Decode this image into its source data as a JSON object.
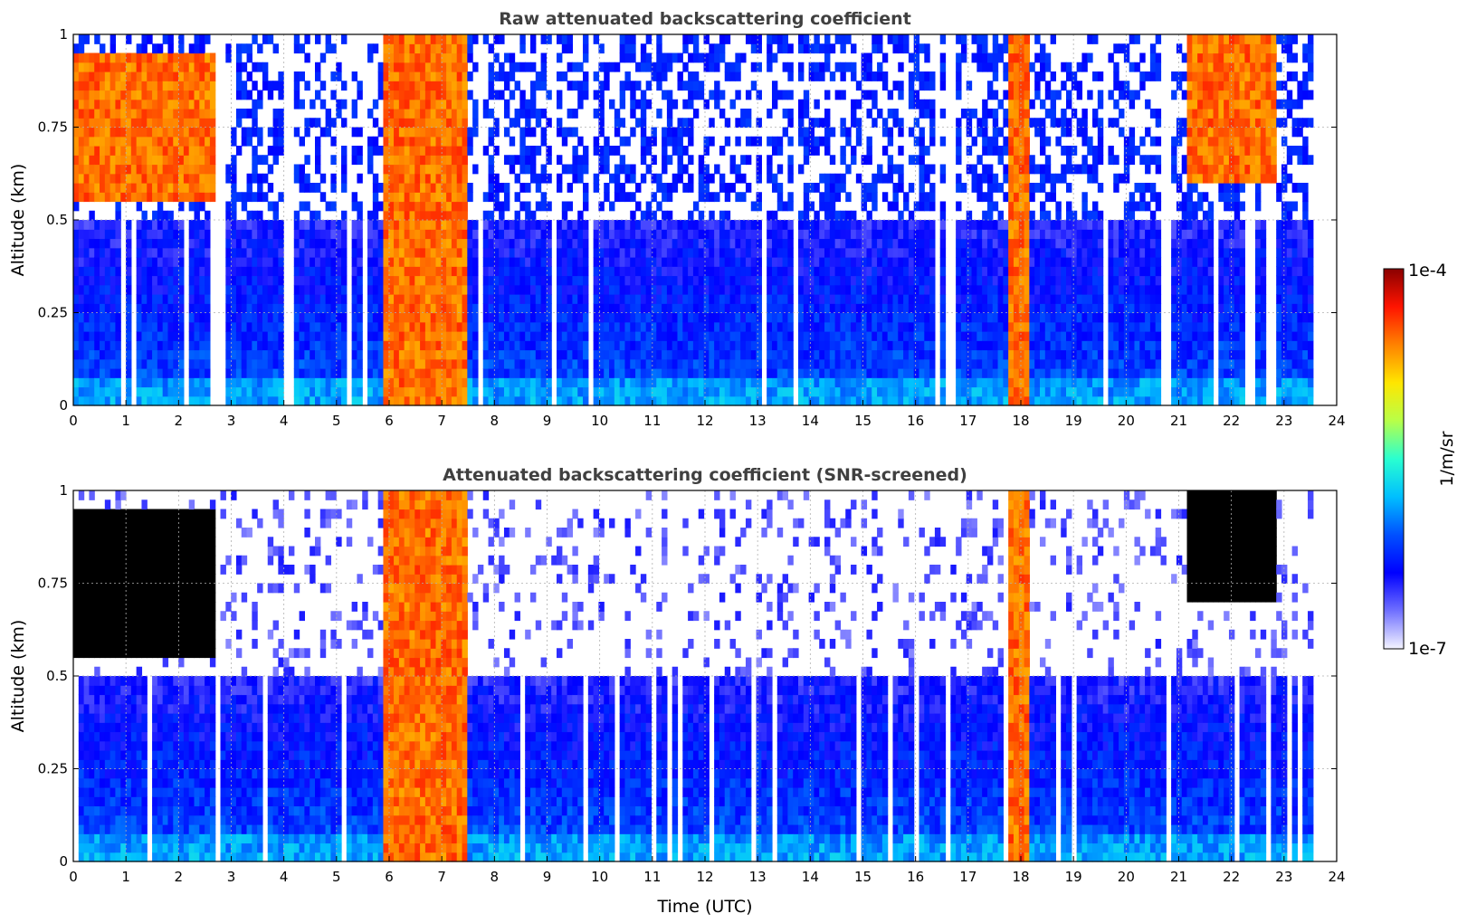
{
  "chart_data": [
    {
      "type": "heatmap",
      "title": "Raw attenuated backscattering coefficient",
      "xlabel": "",
      "ylabel": "Altitude (km)",
      "xlim": [
        0,
        24
      ],
      "ylim": [
        0,
        1
      ],
      "xticks": [
        "0",
        "1",
        "2",
        "3",
        "4",
        "5",
        "6",
        "7",
        "8",
        "9",
        "10",
        "11",
        "12",
        "13",
        "14",
        "15",
        "16",
        "17",
        "18",
        "19",
        "20",
        "21",
        "22",
        "23",
        "24"
      ],
      "yticks": [
        "0",
        "0.25",
        "0.5",
        "0.75",
        "1"
      ],
      "grid": true,
      "data_end_time": 23.55,
      "features": [
        {
          "time_start": 0.0,
          "time_end": 2.7,
          "alt_start": 0.55,
          "alt_end": 0.95,
          "level": "high"
        },
        {
          "time_start": 5.9,
          "time_end": 7.5,
          "alt_start": 0.0,
          "alt_end": 1.0,
          "level": "high"
        },
        {
          "time_start": 17.8,
          "time_end": 18.2,
          "alt_start": 0.0,
          "alt_end": 1.0,
          "level": "high"
        },
        {
          "time_start": 21.2,
          "time_end": 22.9,
          "alt_start": 0.6,
          "alt_end": 1.0,
          "level": "high"
        },
        {
          "time_start": 0.0,
          "time_end": 23.55,
          "alt_start": 0.0,
          "alt_end": 0.5,
          "level": "moderate"
        }
      ]
    },
    {
      "type": "heatmap",
      "title": "Attenuated backscattering coefficient (SNR-screened)",
      "xlabel": "Time (UTC)",
      "ylabel": "Altitude (km)",
      "xlim": [
        0,
        24
      ],
      "ylim": [
        0,
        1
      ],
      "xticks": [
        "0",
        "1",
        "2",
        "3",
        "4",
        "5",
        "6",
        "7",
        "8",
        "9",
        "10",
        "11",
        "12",
        "13",
        "14",
        "15",
        "16",
        "17",
        "18",
        "19",
        "20",
        "21",
        "22",
        "23",
        "24"
      ],
      "yticks": [
        "0",
        "0.25",
        "0.5",
        "0.75",
        "1"
      ],
      "grid": true,
      "data_end_time": 23.55,
      "features": [
        {
          "time_start": 0.0,
          "time_end": 2.7,
          "alt_start": 0.55,
          "alt_end": 0.95,
          "level": "saturated"
        },
        {
          "time_start": 5.9,
          "time_end": 7.5,
          "alt_start": 0.0,
          "alt_end": 1.0,
          "level": "high"
        },
        {
          "time_start": 17.8,
          "time_end": 18.2,
          "alt_start": 0.0,
          "alt_end": 1.0,
          "level": "high"
        },
        {
          "time_start": 21.2,
          "time_end": 22.9,
          "alt_start": 0.7,
          "alt_end": 1.0,
          "level": "saturated"
        },
        {
          "time_start": 0.0,
          "time_end": 23.55,
          "alt_start": 0.0,
          "alt_end": 0.5,
          "level": "moderate"
        }
      ]
    }
  ],
  "colorbar": {
    "label": "1/m/sr",
    "max_label": "1e-4",
    "min_label": "1e-7",
    "colormap": "jet-with-white-low",
    "colors": [
      "#f4f4ff",
      "#7070ff",
      "#0000ff",
      "#0050ff",
      "#00bfff",
      "#2affd0",
      "#b8ff48",
      "#ffe600",
      "#ff8200",
      "#ff1400",
      "#8a0000"
    ]
  }
}
